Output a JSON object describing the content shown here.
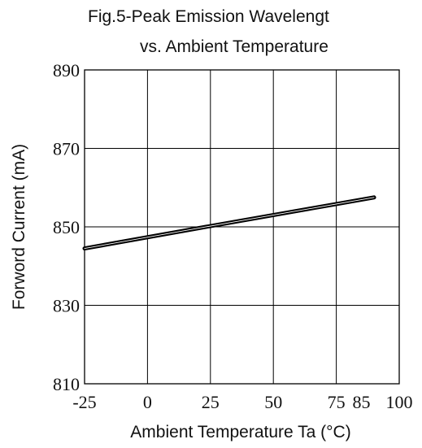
{
  "chart_data": {
    "type": "line",
    "title": [
      "Fig.5-Peak Emission Wavelengt",
      "vs. Ambient Temperature"
    ],
    "xlabel": "Ambient Temperature Ta (°C)",
    "ylabel": "Forword Current (mA)",
    "xlim": [
      -25,
      100
    ],
    "ylim": [
      810,
      890
    ],
    "x_ticks": [
      -25,
      0,
      25,
      50,
      75,
      85,
      100
    ],
    "x_grid": [
      0,
      25,
      50,
      75
    ],
    "y_ticks": [
      810,
      830,
      850,
      870,
      890
    ],
    "grid": true,
    "series": [
      {
        "x": [
          -25,
          25,
          90
        ],
        "y": [
          844.5,
          850.2,
          857.5
        ],
        "color": "#000000"
      }
    ]
  }
}
